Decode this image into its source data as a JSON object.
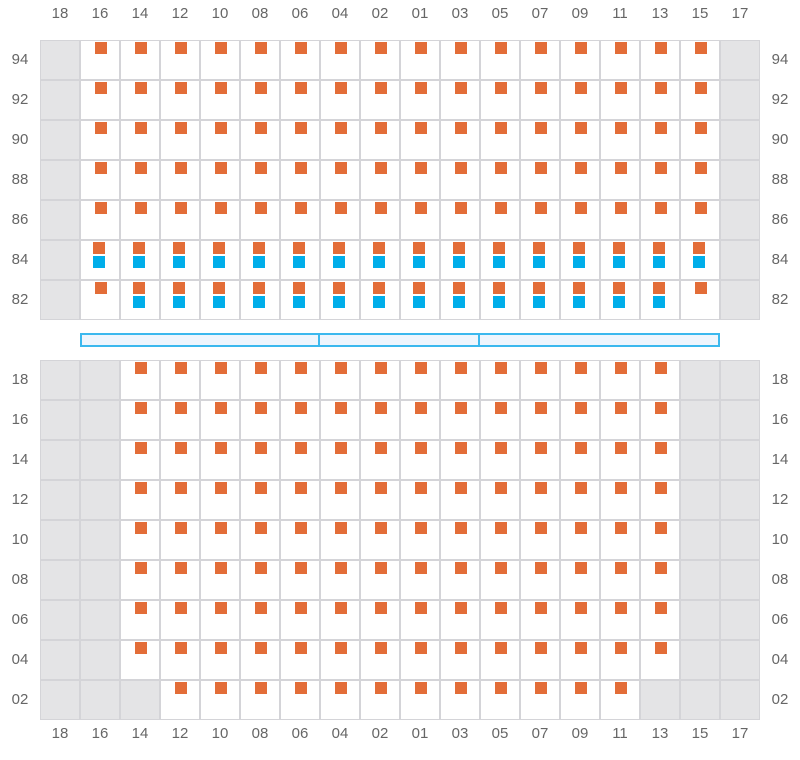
{
  "colors": {
    "orange": "#e36d38",
    "blue": "#00aeea",
    "unavailable": "#e4e4e6",
    "hatch_border": "#3bb8ee"
  },
  "columns": [
    "18",
    "16",
    "14",
    "12",
    "10",
    "08",
    "06",
    "04",
    "02",
    "01",
    "03",
    "05",
    "07",
    "09",
    "11",
    "13",
    "15",
    "17"
  ],
  "deck": {
    "rows": [
      {
        "tier": "94",
        "cells": [
          "X",
          "O",
          "O",
          "O",
          "O",
          "O",
          "O",
          "O",
          "O",
          "O",
          "O",
          "O",
          "O",
          "O",
          "O",
          "O",
          "O",
          "X"
        ]
      },
      {
        "tier": "92",
        "cells": [
          "X",
          "O",
          "O",
          "O",
          "O",
          "O",
          "O",
          "O",
          "O",
          "O",
          "O",
          "O",
          "O",
          "O",
          "O",
          "O",
          "O",
          "X"
        ]
      },
      {
        "tier": "90",
        "cells": [
          "X",
          "O",
          "O",
          "O",
          "O",
          "O",
          "O",
          "O",
          "O",
          "O",
          "O",
          "O",
          "O",
          "O",
          "O",
          "O",
          "O",
          "X"
        ]
      },
      {
        "tier": "88",
        "cells": [
          "X",
          "O",
          "O",
          "O",
          "O",
          "O",
          "O",
          "O",
          "O",
          "O",
          "O",
          "O",
          "O",
          "O",
          "O",
          "O",
          "O",
          "X"
        ]
      },
      {
        "tier": "86",
        "cells": [
          "X",
          "O",
          "O",
          "O",
          "O",
          "O",
          "O",
          "O",
          "O",
          "O",
          "O",
          "O",
          "O",
          "O",
          "O",
          "O",
          "O",
          "X"
        ]
      },
      {
        "tier": "84",
        "cells": [
          "X",
          "OB",
          "OB",
          "OB",
          "OB",
          "OB",
          "OB",
          "OB",
          "OB",
          "OB",
          "OB",
          "OB",
          "OB",
          "OB",
          "OB",
          "OB",
          "OB",
          "X"
        ]
      },
      {
        "tier": "82",
        "cells": [
          "X",
          "O",
          "OB",
          "OB",
          "OB",
          "OB",
          "OB",
          "OB",
          "OB",
          "OB",
          "OB",
          "OB",
          "OB",
          "OB",
          "OB",
          "OB",
          "O",
          "X"
        ]
      }
    ]
  },
  "hold": {
    "rows": [
      {
        "tier": "18",
        "cells": [
          "X",
          "X",
          "O",
          "O",
          "O",
          "O",
          "O",
          "O",
          "O",
          "O",
          "O",
          "O",
          "O",
          "O",
          "O",
          "O",
          "X",
          "X"
        ]
      },
      {
        "tier": "16",
        "cells": [
          "X",
          "X",
          "O",
          "O",
          "O",
          "O",
          "O",
          "O",
          "O",
          "O",
          "O",
          "O",
          "O",
          "O",
          "O",
          "O",
          "X",
          "X"
        ]
      },
      {
        "tier": "14",
        "cells": [
          "X",
          "X",
          "O",
          "O",
          "O",
          "O",
          "O",
          "O",
          "O",
          "O",
          "O",
          "O",
          "O",
          "O",
          "O",
          "O",
          "X",
          "X"
        ]
      },
      {
        "tier": "12",
        "cells": [
          "X",
          "X",
          "O",
          "O",
          "O",
          "O",
          "O",
          "O",
          "O",
          "O",
          "O",
          "O",
          "O",
          "O",
          "O",
          "O",
          "X",
          "X"
        ]
      },
      {
        "tier": "10",
        "cells": [
          "X",
          "X",
          "O",
          "O",
          "O",
          "O",
          "O",
          "O",
          "O",
          "O",
          "O",
          "O",
          "O",
          "O",
          "O",
          "O",
          "X",
          "X"
        ]
      },
      {
        "tier": "08",
        "cells": [
          "X",
          "X",
          "O",
          "O",
          "O",
          "O",
          "O",
          "O",
          "O",
          "O",
          "O",
          "O",
          "O",
          "O",
          "O",
          "O",
          "X",
          "X"
        ]
      },
      {
        "tier": "06",
        "cells": [
          "X",
          "X",
          "O",
          "O",
          "O",
          "O",
          "O",
          "O",
          "O",
          "O",
          "O",
          "O",
          "O",
          "O",
          "O",
          "O",
          "X",
          "X"
        ]
      },
      {
        "tier": "04",
        "cells": [
          "X",
          "X",
          "O",
          "O",
          "O",
          "O",
          "O",
          "O",
          "O",
          "O",
          "O",
          "O",
          "O",
          "O",
          "O",
          "O",
          "X",
          "X"
        ]
      },
      {
        "tier": "02",
        "cells": [
          "X",
          "X",
          "X",
          "O",
          "O",
          "O",
          "O",
          "O",
          "O",
          "O",
          "O",
          "O",
          "O",
          "O",
          "O",
          "X",
          "X",
          "X"
        ]
      }
    ]
  },
  "hatch_covers": 3
}
